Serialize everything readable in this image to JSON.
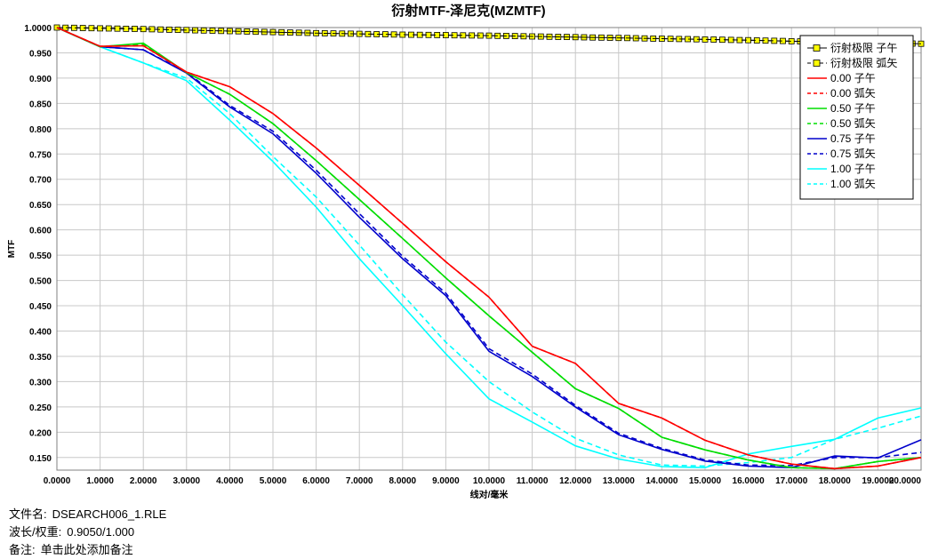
{
  "chart_data": {
    "type": "line",
    "title": "衍射MTF-泽尼克(MZMTF)",
    "xlabel": "线对/毫米",
    "ylabel": "MTF",
    "xlim": [
      0,
      20
    ],
    "ylim": [
      0.125,
      1.0
    ],
    "grid": true,
    "legend_position": "top-right",
    "x_ticks": [
      "0.0000",
      "1.0000",
      "2.0000",
      "3.0000",
      "4.0000",
      "5.0000",
      "6.0000",
      "7.0000",
      "8.0000",
      "9.0000",
      "10.0000",
      "11.0000",
      "12.0000",
      "13.0000",
      "14.0000",
      "15.0000",
      "16.0000",
      "17.0000",
      "18.0000",
      "19.0000",
      "20.0000"
    ],
    "y_ticks": [
      "0.150",
      "0.200",
      "0.250",
      "0.300",
      "0.350",
      "0.400",
      "0.450",
      "0.500",
      "0.550",
      "0.600",
      "0.650",
      "0.700",
      "0.750",
      "0.800",
      "0.850",
      "0.900",
      "0.950",
      "1.0000"
    ],
    "series": [
      {
        "name": "衍射极限 子午",
        "color": "#000000",
        "dash": "solid",
        "marker": "square",
        "points": [
          [
            0,
            1.0
          ],
          [
            2,
            0.997
          ],
          [
            4,
            0.993
          ],
          [
            6,
            0.989
          ],
          [
            8,
            0.986
          ],
          [
            10,
            0.984
          ],
          [
            12,
            0.981
          ],
          [
            14,
            0.978
          ],
          [
            16,
            0.975
          ],
          [
            18,
            0.971
          ],
          [
            20,
            0.968
          ]
        ]
      },
      {
        "name": "衍射极限 弧矢",
        "color": "#000000",
        "dash": "dash",
        "marker": "square",
        "points": [
          [
            0,
            1.0
          ],
          [
            2,
            0.997
          ],
          [
            4,
            0.993
          ],
          [
            6,
            0.989
          ],
          [
            8,
            0.986
          ],
          [
            10,
            0.984
          ],
          [
            12,
            0.981
          ],
          [
            14,
            0.978
          ],
          [
            16,
            0.975
          ],
          [
            18,
            0.971
          ],
          [
            20,
            0.968
          ]
        ]
      },
      {
        "name": "0.00 子午",
        "color": "#ff0000",
        "dash": "solid",
        "marker": "none",
        "points": [
          [
            0,
            1.0
          ],
          [
            1,
            0.963
          ],
          [
            2,
            0.964
          ],
          [
            3,
            0.912
          ],
          [
            4,
            0.883
          ],
          [
            5,
            0.83
          ],
          [
            6,
            0.762
          ],
          [
            7,
            0.688
          ],
          [
            8,
            0.613
          ],
          [
            9,
            0.537
          ],
          [
            10,
            0.467
          ],
          [
            11,
            0.37
          ],
          [
            12,
            0.336
          ],
          [
            13,
            0.257
          ],
          [
            14,
            0.228
          ],
          [
            15,
            0.184
          ],
          [
            16,
            0.155
          ],
          [
            17,
            0.137
          ],
          [
            18,
            0.128
          ],
          [
            19,
            0.133
          ],
          [
            20,
            0.15
          ]
        ]
      },
      {
        "name": "0.00 弧矢",
        "color": "#ff0000",
        "dash": "dash",
        "marker": "none",
        "points": [
          [
            0,
            1.0
          ],
          [
            1,
            0.963
          ],
          [
            2,
            0.964
          ],
          [
            3,
            0.912
          ],
          [
            4,
            0.883
          ],
          [
            5,
            0.83
          ],
          [
            6,
            0.762
          ],
          [
            7,
            0.688
          ],
          [
            8,
            0.613
          ],
          [
            9,
            0.537
          ],
          [
            10,
            0.467
          ],
          [
            11,
            0.37
          ],
          [
            12,
            0.336
          ],
          [
            13,
            0.257
          ],
          [
            14,
            0.228
          ],
          [
            15,
            0.184
          ],
          [
            16,
            0.155
          ],
          [
            17,
            0.137
          ],
          [
            18,
            0.128
          ],
          [
            19,
            0.133
          ],
          [
            20,
            0.15
          ]
        ]
      },
      {
        "name": "0.50 子午",
        "color": "#00dd00",
        "dash": "solid",
        "marker": "none",
        "points": [
          [
            0,
            1.0
          ],
          [
            1,
            0.962
          ],
          [
            2,
            0.969
          ],
          [
            3,
            0.911
          ],
          [
            4,
            0.868
          ],
          [
            5,
            0.81
          ],
          [
            6,
            0.737
          ],
          [
            7,
            0.66
          ],
          [
            8,
            0.583
          ],
          [
            9,
            0.505
          ],
          [
            10,
            0.43
          ],
          [
            11,
            0.358
          ],
          [
            12,
            0.286
          ],
          [
            13,
            0.247
          ],
          [
            14,
            0.19
          ],
          [
            15,
            0.165
          ],
          [
            16,
            0.145
          ],
          [
            17,
            0.13
          ],
          [
            18,
            0.128
          ],
          [
            19,
            0.142
          ],
          [
            20,
            0.15
          ]
        ]
      },
      {
        "name": "0.50 弧矢",
        "color": "#00dd00",
        "dash": "dash",
        "marker": "none",
        "points": [
          [
            0,
            1.0
          ],
          [
            1,
            0.962
          ],
          [
            2,
            0.967
          ],
          [
            3,
            0.911
          ],
          [
            4,
            0.868
          ],
          [
            5,
            0.81
          ],
          [
            6,
            0.737
          ],
          [
            7,
            0.66
          ],
          [
            8,
            0.583
          ],
          [
            9,
            0.505
          ],
          [
            10,
            0.43
          ],
          [
            11,
            0.358
          ],
          [
            12,
            0.286
          ],
          [
            13,
            0.247
          ],
          [
            14,
            0.19
          ],
          [
            15,
            0.165
          ],
          [
            16,
            0.145
          ],
          [
            17,
            0.13
          ],
          [
            18,
            0.128
          ],
          [
            19,
            0.142
          ],
          [
            20,
            0.15
          ]
        ]
      },
      {
        "name": "0.75 子午",
        "color": "#0000cc",
        "dash": "solid",
        "marker": "none",
        "points": [
          [
            0,
            1.0
          ],
          [
            1,
            0.962
          ],
          [
            2,
            0.956
          ],
          [
            3,
            0.91
          ],
          [
            4,
            0.843
          ],
          [
            5,
            0.79
          ],
          [
            6,
            0.712
          ],
          [
            7,
            0.625
          ],
          [
            8,
            0.543
          ],
          [
            9,
            0.47
          ],
          [
            10,
            0.36
          ],
          [
            11,
            0.31
          ],
          [
            12,
            0.25
          ],
          [
            13,
            0.195
          ],
          [
            14,
            0.166
          ],
          [
            15,
            0.143
          ],
          [
            16,
            0.133
          ],
          [
            17,
            0.13
          ],
          [
            18,
            0.153
          ],
          [
            19,
            0.149
          ],
          [
            20,
            0.185
          ]
        ]
      },
      {
        "name": "0.75 弧矢",
        "color": "#0000cc",
        "dash": "dash",
        "marker": "none",
        "points": [
          [
            0,
            1.0
          ],
          [
            1,
            0.962
          ],
          [
            2,
            0.956
          ],
          [
            3,
            0.912
          ],
          [
            4,
            0.846
          ],
          [
            5,
            0.795
          ],
          [
            6,
            0.718
          ],
          [
            7,
            0.632
          ],
          [
            8,
            0.548
          ],
          [
            9,
            0.475
          ],
          [
            10,
            0.365
          ],
          [
            11,
            0.315
          ],
          [
            12,
            0.253
          ],
          [
            13,
            0.198
          ],
          [
            14,
            0.168
          ],
          [
            15,
            0.145
          ],
          [
            16,
            0.135
          ],
          [
            17,
            0.134
          ],
          [
            18,
            0.15
          ],
          [
            19,
            0.15
          ],
          [
            20,
            0.16
          ]
        ]
      },
      {
        "name": "1.00 子午",
        "color": "#00ffff",
        "dash": "solid",
        "marker": "none",
        "points": [
          [
            0,
            1.0
          ],
          [
            1,
            0.962
          ],
          [
            2,
            0.93
          ],
          [
            3,
            0.895
          ],
          [
            4,
            0.817
          ],
          [
            5,
            0.735
          ],
          [
            6,
            0.645
          ],
          [
            7,
            0.543
          ],
          [
            8,
            0.45
          ],
          [
            9,
            0.355
          ],
          [
            10,
            0.266
          ],
          [
            11,
            0.22
          ],
          [
            12,
            0.173
          ],
          [
            13,
            0.147
          ],
          [
            14,
            0.132
          ],
          [
            15,
            0.13
          ],
          [
            16,
            0.157
          ],
          [
            17,
            0.172
          ],
          [
            18,
            0.186
          ],
          [
            19,
            0.228
          ],
          [
            20,
            0.248
          ]
        ]
      },
      {
        "name": "1.00 弧矢",
        "color": "#00ffff",
        "dash": "dash",
        "marker": "none",
        "points": [
          [
            0,
            1.0
          ],
          [
            1,
            0.962
          ],
          [
            2,
            0.93
          ],
          [
            3,
            0.9
          ],
          [
            4,
            0.83
          ],
          [
            5,
            0.745
          ],
          [
            6,
            0.665
          ],
          [
            7,
            0.57
          ],
          [
            8,
            0.472
          ],
          [
            9,
            0.378
          ],
          [
            10,
            0.3
          ],
          [
            11,
            0.24
          ],
          [
            12,
            0.188
          ],
          [
            13,
            0.155
          ],
          [
            14,
            0.135
          ],
          [
            15,
            0.133
          ],
          [
            16,
            0.14
          ],
          [
            17,
            0.15
          ],
          [
            18,
            0.186
          ],
          [
            19,
            0.208
          ],
          [
            20,
            0.232
          ]
        ]
      }
    ]
  },
  "info": {
    "file_label": "文件名:",
    "file_value": "DSEARCH006_1.RLE",
    "wave_label": "波长/权重:",
    "wave_value": "0.9050/1.000",
    "note_label": "备注:",
    "note_value": "单击此处添加备注"
  }
}
